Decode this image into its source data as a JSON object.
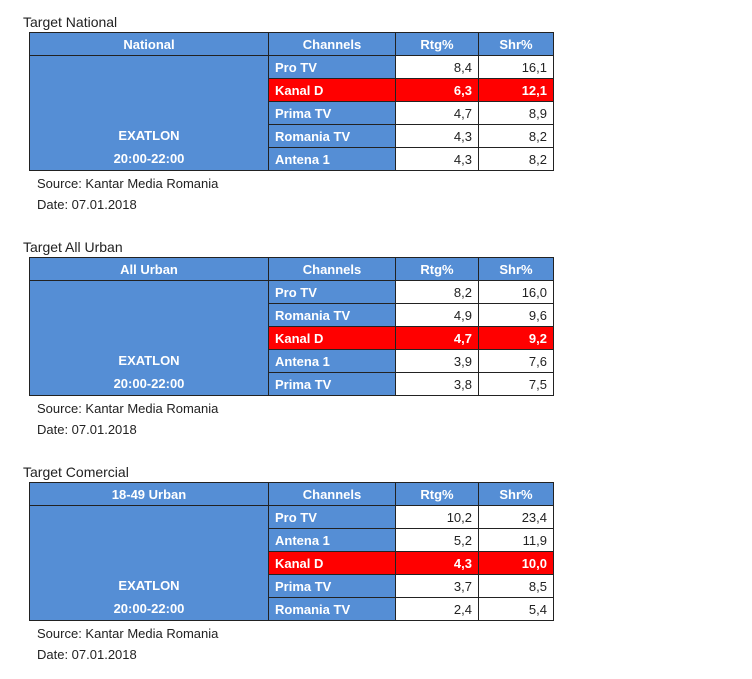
{
  "sections": [
    {
      "title": "Target National",
      "header": [
        "National",
        "Channels",
        "Rtg%",
        "Shr%"
      ],
      "program": "EXATLON",
      "time": "20:00-22:00",
      "rows": [
        {
          "channel": "Pro TV",
          "rtg": "8,4",
          "shr": "16,1",
          "highlight": false
        },
        {
          "channel": "Kanal D",
          "rtg": "6,3",
          "shr": "12,1",
          "highlight": true
        },
        {
          "channel": "Prima TV",
          "rtg": "4,7",
          "shr": "8,9",
          "highlight": false
        },
        {
          "channel": "Romania TV",
          "rtg": "4,3",
          "shr": "8,2",
          "highlight": false
        },
        {
          "channel": "Antena 1",
          "rtg": "4,3",
          "shr": "8,2",
          "highlight": false
        }
      ],
      "source": "Source: Kantar Media Romania",
      "date": "Date: 07.01.2018"
    },
    {
      "title": "Target All Urban",
      "header": [
        "All Urban",
        "Channels",
        "Rtg%",
        "Shr%"
      ],
      "program": "EXATLON",
      "time": "20:00-22:00",
      "rows": [
        {
          "channel": "Pro TV",
          "rtg": "8,2",
          "shr": "16,0",
          "highlight": false
        },
        {
          "channel": "Romania TV",
          "rtg": "4,9",
          "shr": "9,6",
          "highlight": false
        },
        {
          "channel": "Kanal D",
          "rtg": "4,7",
          "shr": "9,2",
          "highlight": true
        },
        {
          "channel": "Antena 1",
          "rtg": "3,9",
          "shr": "7,6",
          "highlight": false
        },
        {
          "channel": "Prima TV",
          "rtg": "3,8",
          "shr": "7,5",
          "highlight": false
        }
      ],
      "source": "Source: Kantar Media Romania",
      "date": "Date: 07.01.2018"
    },
    {
      "title": "Target Comercial",
      "header": [
        "18-49 Urban",
        "Channels",
        "Rtg%",
        "Shr%"
      ],
      "program": "EXATLON",
      "time": "20:00-22:00",
      "rows": [
        {
          "channel": "Pro TV",
          "rtg": "10,2",
          "shr": "23,4",
          "highlight": false
        },
        {
          "channel": "Antena 1",
          "rtg": "5,2",
          "shr": "11,9",
          "highlight": false
        },
        {
          "channel": "Kanal D",
          "rtg": "4,3",
          "shr": "10,0",
          "highlight": true
        },
        {
          "channel": "Prima TV",
          "rtg": "3,7",
          "shr": "8,5",
          "highlight": false
        },
        {
          "channel": "Romania TV",
          "rtg": "2,4",
          "shr": "5,4",
          "highlight": false
        }
      ],
      "source": "Source: Kantar Media Romania",
      "date": "Date: 07.01.2018"
    }
  ],
  "colors": {
    "header": "#558ed5",
    "highlight": "#ff0000"
  }
}
